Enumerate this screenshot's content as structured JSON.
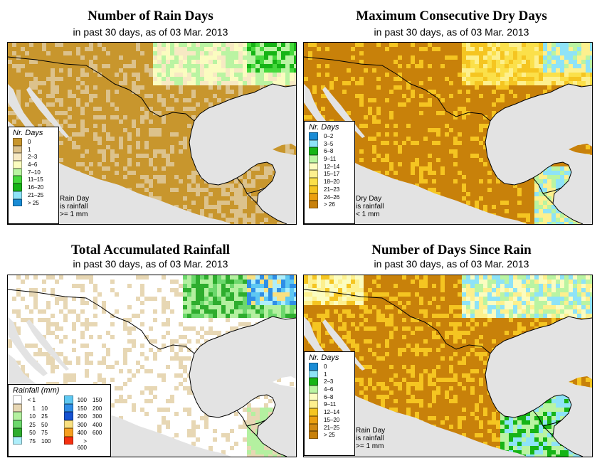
{
  "panels": [
    {
      "id": "rain-days",
      "title": "Number of Rain Days",
      "subtitle": "in past 30 days, as of  03 Mar. 2013",
      "legend_title": "Nr. Days",
      "legend": [
        {
          "label": "0",
          "color": "#c8962d"
        },
        {
          "label": "1",
          "color": "#dcc28c"
        },
        {
          "label": "2–3",
          "color": "#f7e9c3"
        },
        {
          "label": "4–6",
          "color": "#fbfcc0"
        },
        {
          "label": "7–10",
          "color": "#baf4a2"
        },
        {
          "label": "11–15",
          "color": "#45d93c"
        },
        {
          "label": "16–20",
          "color": "#16b416"
        },
        {
          "label": "21–25",
          "color": "#8ee3f7"
        },
        {
          "label": "> 25",
          "color": "#1a8cd5"
        }
      ],
      "note": [
        "Rain Day",
        "is rainfall",
        ">= 1 mm"
      ],
      "palette": [
        "#c8962d",
        "#dcc28c",
        "#f7e9c3",
        "#fbfcc0",
        "#baf4a2",
        "#45d93c",
        "#16b416"
      ]
    },
    {
      "id": "dry-days",
      "title": "Maximum Consecutive Dry Days",
      "subtitle": "in past 30 days, as of  03 Mar. 2013",
      "legend_title": "Nr. Days",
      "legend": [
        {
          "label": "0–2",
          "color": "#1a8cd5"
        },
        {
          "label": "3–5",
          "color": "#8ee3f7"
        },
        {
          "label": "6–8",
          "color": "#16b416"
        },
        {
          "label": "9–11",
          "color": "#baf4a2"
        },
        {
          "label": "12–14",
          "color": "#fbfcc0"
        },
        {
          "label": "15–17",
          "color": "#fdf08e"
        },
        {
          "label": "18–20",
          "color": "#fbe04a"
        },
        {
          "label": "21–23",
          "color": "#f5c521"
        },
        {
          "label": "24–26",
          "color": "#eb9f0f"
        },
        {
          "label": "> 26",
          "color": "#c8810a"
        }
      ],
      "note": [
        "Dry Day",
        "is rainfall",
        "< 1 mm"
      ],
      "palette": [
        "#c8810a",
        "#eb9f0f",
        "#f5c521",
        "#fbe04a",
        "#fdf08e",
        "#baf4a2",
        "#8ee3f7"
      ]
    },
    {
      "id": "rainfall",
      "title": "Total Accumulated Rainfall",
      "subtitle": "in past 30 days, as of  03 Mar. 2013",
      "legend_title": "Rainfall (mm)",
      "legend_left": [
        {
          "lo": "< 1",
          "hi": "",
          "color": "#ffffff"
        },
        {
          "lo": "1",
          "hi": "10",
          "color": "#e7d7b4"
        },
        {
          "lo": "10",
          "hi": "25",
          "color": "#b4f0a0"
        },
        {
          "lo": "25",
          "hi": "50",
          "color": "#6cd86c"
        },
        {
          "lo": "50",
          "hi": "75",
          "color": "#2ead2e"
        },
        {
          "lo": "75",
          "hi": "100",
          "color": "#aeeefa"
        }
      ],
      "legend_right": [
        {
          "lo": "100",
          "hi": "150",
          "color": "#5ec8f2"
        },
        {
          "lo": "150",
          "hi": "200",
          "color": "#2f8ee6"
        },
        {
          "lo": "200",
          "hi": "300",
          "color": "#1552d2"
        },
        {
          "lo": "300",
          "hi": "400",
          "color": "#f9e080"
        },
        {
          "lo": "400",
          "hi": "600",
          "color": "#f7a020"
        },
        {
          "lo": "> 600",
          "hi": "",
          "color": "#f53010"
        }
      ],
      "palette": [
        "#ffffff",
        "#e7d7b4",
        "#b4f0a0",
        "#6cd86c",
        "#2ead2e",
        "#aeeefa",
        "#5ec8f2",
        "#2f8ee6",
        "#f9e080"
      ]
    },
    {
      "id": "since-rain",
      "title": "Number of Days Since Rain",
      "subtitle": "in past 30 days, as of  03 Mar. 2013",
      "legend_title": "Nr. Days",
      "legend": [
        {
          "label": "0",
          "color": "#1a8cd5"
        },
        {
          "label": "1",
          "color": "#8ee3f7"
        },
        {
          "label": "2–3",
          "color": "#16b416"
        },
        {
          "label": "4–6",
          "color": "#baf4a2"
        },
        {
          "label": "6–8",
          "color": "#fbfcc0"
        },
        {
          "label": "9–11",
          "color": "#fdf08e"
        },
        {
          "label": "12–14",
          "color": "#f5c521"
        },
        {
          "label": "15–20",
          "color": "#eb9f0f"
        },
        {
          "label": "21–25",
          "color": "#d28a12"
        },
        {
          "label": "> 25",
          "color": "#c8810a"
        }
      ],
      "note": [
        "Rain Day",
        "is rainfall",
        ">= 1 mm"
      ],
      "palette": [
        "#c8810a",
        "#eb9f0f",
        "#f5c521",
        "#fdf08e",
        "#fbfcc0",
        "#baf4a2",
        "#8ee3f7",
        "#16b416"
      ]
    }
  ]
}
